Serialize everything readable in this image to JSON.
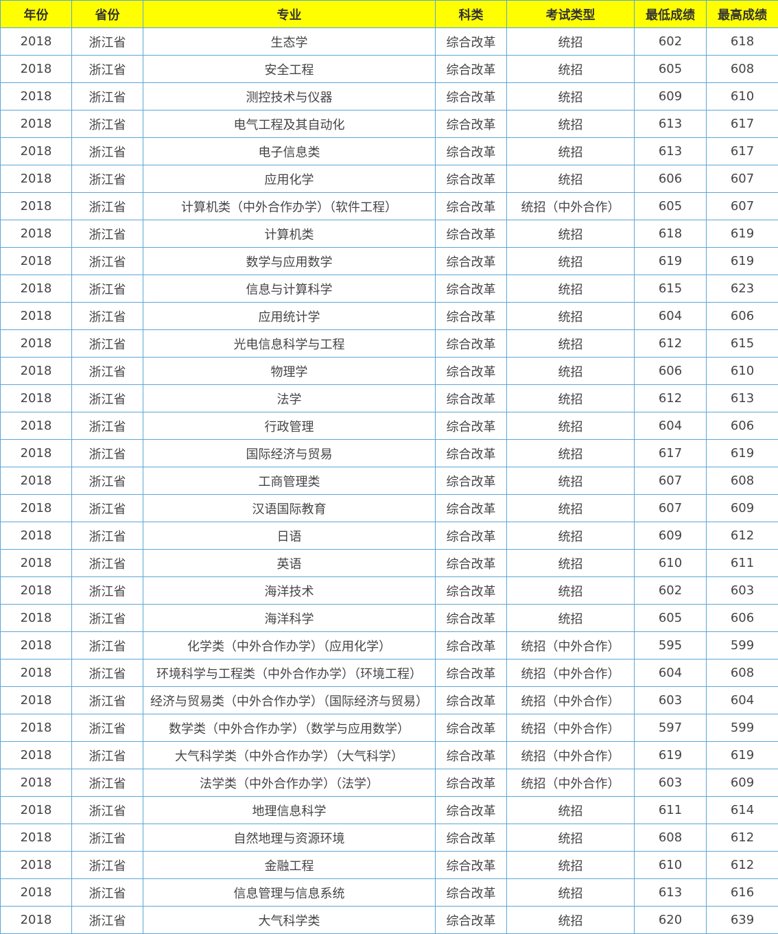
{
  "table": {
    "header": [
      "年份",
      "省份",
      "专业",
      "科类",
      "考试类型",
      "最低成绩",
      "最高成绩"
    ],
    "rows": [
      [
        2018,
        "浙江省",
        "生态学",
        "综合改革",
        "统招",
        602,
        618
      ],
      [
        2018,
        "浙江省",
        "安全工程",
        "综合改革",
        "统招",
        605,
        608
      ],
      [
        2018,
        "浙江省",
        "测控技术与仪器",
        "综合改革",
        "统招",
        609,
        610
      ],
      [
        2018,
        "浙江省",
        "电气工程及其自动化",
        "综合改革",
        "统招",
        613,
        617
      ],
      [
        2018,
        "浙江省",
        "电子信息类",
        "综合改革",
        "统招",
        613,
        617
      ],
      [
        2018,
        "浙江省",
        "应用化学",
        "综合改革",
        "统招",
        606,
        607
      ],
      [
        2018,
        "浙江省",
        "计算机类（中外合作办学）（软件工程）",
        "综合改革",
        "统招（中外合作）",
        605,
        607
      ],
      [
        2018,
        "浙江省",
        "计算机类",
        "综合改革",
        "统招",
        618,
        619
      ],
      [
        2018,
        "浙江省",
        "数学与应用数学",
        "综合改革",
        "统招",
        619,
        619
      ],
      [
        2018,
        "浙江省",
        "信息与计算科学",
        "综合改革",
        "统招",
        615,
        623
      ],
      [
        2018,
        "浙江省",
        "应用统计学",
        "综合改革",
        "统招",
        604,
        606
      ],
      [
        2018,
        "浙江省",
        "光电信息科学与工程",
        "综合改革",
        "统招",
        612,
        615
      ],
      [
        2018,
        "浙江省",
        "物理学",
        "综合改革",
        "统招",
        606,
        610
      ],
      [
        2018,
        "浙江省",
        "法学",
        "综合改革",
        "统招",
        612,
        613
      ],
      [
        2018,
        "浙江省",
        "行政管理",
        "综合改革",
        "统招",
        604,
        606
      ],
      [
        2018,
        "浙江省",
        "国际经济与贸易",
        "综合改革",
        "统招",
        617,
        619
      ],
      [
        2018,
        "浙江省",
        "工商管理类",
        "综合改革",
        "统招",
        607,
        608
      ],
      [
        2018,
        "浙江省",
        "汉语国际教育",
        "综合改革",
        "统招",
        607,
        609
      ],
      [
        2018,
        "浙江省",
        "日语",
        "综合改革",
        "统招",
        609,
        612
      ],
      [
        2018,
        "浙江省",
        "英语",
        "综合改革",
        "统招",
        610,
        611
      ],
      [
        2018,
        "浙江省",
        "海洋技术",
        "综合改革",
        "统招",
        602,
        603
      ],
      [
        2018,
        "浙江省",
        "海洋科学",
        "综合改革",
        "统招",
        605,
        606
      ],
      [
        2018,
        "浙江省",
        "化学类（中外合作办学）（应用化学）",
        "综合改革",
        "统招（中外合作）",
        595,
        599
      ],
      [
        2018,
        "浙江省",
        "环境科学与工程类（中外合作办学）（环境工程）",
        "综合改革",
        "统招（中外合作）",
        604,
        608
      ],
      [
        2018,
        "浙江省",
        "经济与贸易类（中外合作办学）（国际经济与贸易）",
        "综合改革",
        "统招（中外合作）",
        603,
        604
      ],
      [
        2018,
        "浙江省",
        "数学类（中外合作办学）（数学与应用数学）",
        "综合改革",
        "统招（中外合作）",
        597,
        599
      ],
      [
        2018,
        "浙江省",
        "大气科学类（中外合作办学）（大气科学）",
        "综合改革",
        "统招（中外合作）",
        619,
        619
      ],
      [
        2018,
        "浙江省",
        "法学类（中外合作办学）（法学）",
        "综合改革",
        "统招（中外合作）",
        603,
        609
      ],
      [
        2018,
        "浙江省",
        "地理信息科学",
        "综合改革",
        "统招",
        611,
        614
      ],
      [
        2018,
        "浙江省",
        "自然地理与资源环境",
        "综合改革",
        "统招",
        608,
        612
      ],
      [
        2018,
        "浙江省",
        "金融工程",
        "综合改革",
        "统招",
        610,
        612
      ],
      [
        2018,
        "浙江省",
        "信息管理与信息系统",
        "综合改革",
        "统招",
        613,
        616
      ],
      [
        2018,
        "浙江省",
        "大气科学类",
        "综合改革",
        "统招",
        620,
        639
      ]
    ]
  }
}
